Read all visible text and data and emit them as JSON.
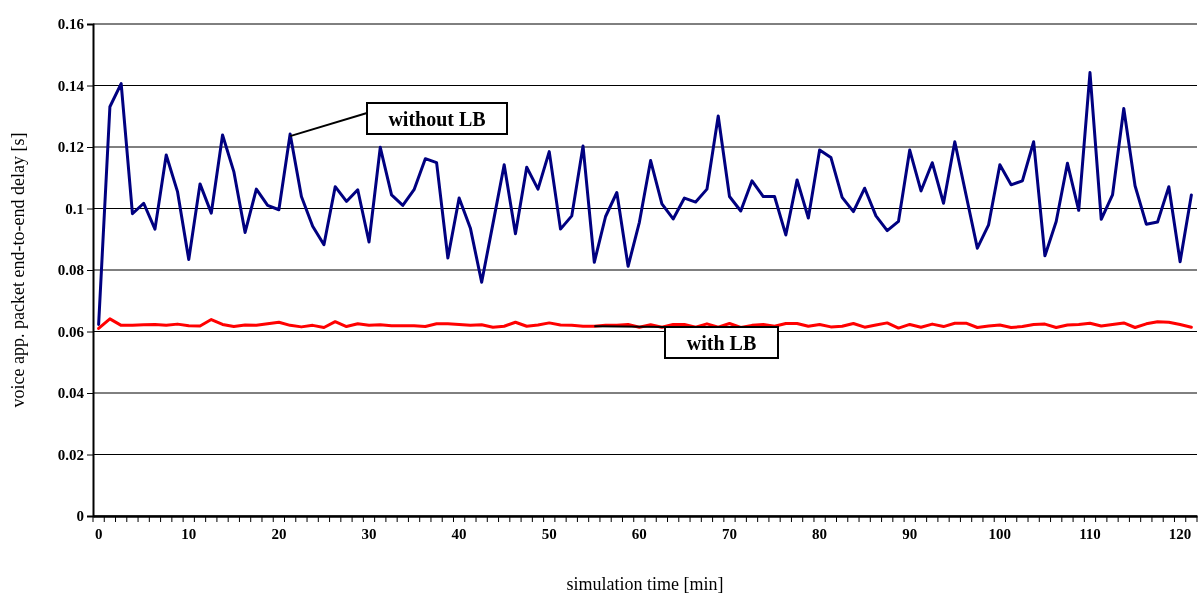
{
  "chart_data": {
    "type": "line",
    "xlabel": "simulation time [min]",
    "ylabel": "voice app. packet end-to-end delay [s]",
    "categories": [
      "0",
      null,
      null,
      null,
      null,
      null,
      null,
      null,
      "10",
      null,
      null,
      null,
      null,
      null,
      null,
      null,
      "20",
      null,
      null,
      null,
      null,
      null,
      null,
      null,
      "30",
      null,
      null,
      null,
      null,
      null,
      null,
      null,
      "40",
      null,
      null,
      null,
      null,
      null,
      null,
      null,
      "50",
      null,
      null,
      null,
      null,
      null,
      null,
      null,
      "60",
      null,
      null,
      null,
      null,
      null,
      null,
      null,
      "70",
      null,
      null,
      null,
      null,
      null,
      null,
      null,
      "80",
      null,
      null,
      null,
      null,
      null,
      null,
      null,
      "90",
      null,
      null,
      null,
      null,
      null,
      null,
      null,
      "100",
      null,
      null,
      null,
      null,
      null,
      null,
      null,
      "110",
      null,
      null,
      null,
      null,
      null,
      null,
      null,
      "120",
      null
    ],
    "ylim": [
      0,
      0.16
    ],
    "yticks": [
      0,
      0.02,
      0.04,
      0.06,
      0.08,
      0.1,
      0.12,
      0.14,
      0.16
    ],
    "grid": "y",
    "marker": "none",
    "line_style": "solid",
    "series": [
      {
        "name": "without LB",
        "color": "#000080",
        "values": [
          0.0623,
          0.1331,
          0.1406,
          0.0983,
          0.1017,
          0.0933,
          0.1174,
          0.1055,
          0.0834,
          0.108,
          0.0985,
          0.1239,
          0.112,
          0.0922,
          0.1063,
          0.101,
          0.0996,
          0.1242,
          0.1039,
          0.0942,
          0.0882,
          0.1071,
          0.1023,
          0.1061,
          0.0891,
          0.1199,
          0.1044,
          0.101,
          0.1061,
          0.1162,
          0.1149,
          0.0839,
          0.1034,
          0.0936,
          0.076,
          0.095,
          0.1142,
          0.0918,
          0.1134,
          0.1063,
          0.1185,
          0.0933,
          0.0976,
          0.1203,
          0.0825,
          0.0974,
          0.1052,
          0.0812,
          0.0955,
          0.1156,
          0.1015,
          0.0966,
          0.1034,
          0.1021,
          0.1063,
          0.1301,
          0.1039,
          0.0992,
          0.109,
          0.1039,
          0.1039,
          0.0914,
          0.1093,
          0.0969,
          0.119,
          0.1166,
          0.1036,
          0.099,
          0.1066,
          0.0976,
          0.0928,
          0.0958,
          0.119,
          0.1057,
          0.1149,
          0.1017,
          0.1217,
          0.1044,
          0.0871,
          0.0947,
          0.1142,
          0.1077,
          0.109,
          0.1217,
          0.0846,
          0.0958,
          0.1147,
          0.0994,
          0.1442,
          0.0965,
          0.1044,
          0.1325,
          0.1074,
          0.0949,
          0.0956,
          0.1071,
          0.0827,
          0.1044
        ]
      },
      {
        "name": "with LB",
        "color": "#ff0000",
        "values": [
          0.061,
          0.0641,
          0.062,
          0.062,
          0.0622,
          0.0623,
          0.062,
          0.0624,
          0.0619,
          0.0618,
          0.0639,
          0.0623,
          0.0616,
          0.0621,
          0.062,
          0.0625,
          0.063,
          0.062,
          0.0615,
          0.062,
          0.0613,
          0.0632,
          0.0616,
          0.0625,
          0.062,
          0.0622,
          0.0619,
          0.0619,
          0.0619,
          0.0616,
          0.0625,
          0.0625,
          0.0623,
          0.062,
          0.0622,
          0.0614,
          0.0617,
          0.063,
          0.0617,
          0.0621,
          0.0628,
          0.0621,
          0.062,
          0.0617,
          0.0617,
          0.062,
          0.062,
          0.0623,
          0.0614,
          0.0622,
          0.0614,
          0.0623,
          0.0623,
          0.0614,
          0.0625,
          0.0614,
          0.0626,
          0.0613,
          0.062,
          0.0623,
          0.0617,
          0.0626,
          0.0626,
          0.0617,
          0.0623,
          0.0615,
          0.0617,
          0.0626,
          0.0614,
          0.0621,
          0.0628,
          0.0611,
          0.0623,
          0.0614,
          0.0624,
          0.0616,
          0.0627,
          0.0627,
          0.0613,
          0.0618,
          0.0621,
          0.0613,
          0.0616,
          0.0623,
          0.0624,
          0.0613,
          0.0621,
          0.0623,
          0.0627,
          0.0618,
          0.0623,
          0.0628,
          0.0613,
          0.0625,
          0.0632,
          0.063,
          0.0623,
          0.0614
        ]
      }
    ]
  }
}
